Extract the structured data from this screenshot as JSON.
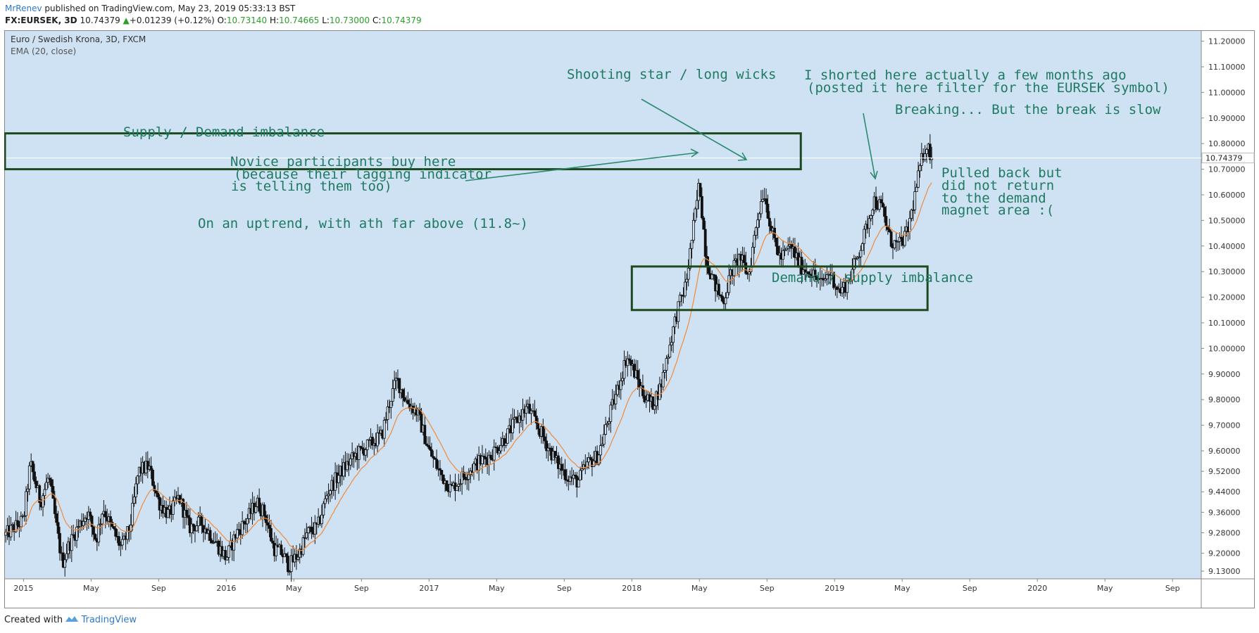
{
  "header": {
    "author": "MrRenev",
    "published_text": "published on TradingView.com, May 23, 2019 05:33:13 BST",
    "symbol": "FX:EURSEK, 3D",
    "last": "10.74379",
    "change": "+0.01239 (+0.12%)",
    "o_label": "O:",
    "o_value": "10.73140",
    "h_label": "H:",
    "h_value": "10.74665",
    "l_label": "L:",
    "l_value": "10.73000",
    "c_label": "C:",
    "c_value": "10.74379"
  },
  "legend": {
    "title": "Euro / Swedish Krona, 3D, FXCM",
    "indicator": "EMA (20, close)"
  },
  "price_tag": "10.74379",
  "annotations": {
    "shooting_star": "Shooting star / long wicks",
    "shorted_1": "I shorted here actually a few months ago",
    "shorted_2": "(posted it here filter for the EURSEK symbol)",
    "breaking": "Breaking... But the break is slow",
    "supply": "Supply / Demand imbalance",
    "novice_1": "Novice participants buy here",
    "novice_2": "(because their lagging indicator",
    "novice_3": "is telling them too)",
    "uptrend": "On an uptrend, with ath far above (11.8~)",
    "pulled_1": "Pulled back but",
    "pulled_2": "did not return",
    "pulled_3": "to the demand",
    "pulled_4": "magnet area :(",
    "demand": "Demand / supply imbalance"
  },
  "colors": {
    "background": "#cfe2f3",
    "candle": "#111111",
    "ema": "#f08a3c",
    "annotation": "#1f7a62",
    "zone_border": "#1d4a1d",
    "accent": "#2e7ac7",
    "up": "#2ca02c"
  },
  "footer": {
    "created_with": "Created with",
    "brand": "TradingView"
  },
  "chart_data": {
    "type": "candlestick",
    "title": "Euro / Swedish Krona, 3D, FXCM",
    "indicator": "EMA (20, close)",
    "ylim": [
      9.1,
      11.24
    ],
    "y_ticks": [
      "11.20000",
      "11.10000",
      "11.00000",
      "10.90000",
      "10.80000",
      "10.70000",
      "10.60000",
      "10.50000",
      "10.40000",
      "10.30000",
      "10.20000",
      "10.10000",
      "10.00000",
      "9.90000",
      "9.80000",
      "9.70000",
      "9.60000",
      "9.52000",
      "9.44000",
      "9.36000",
      "9.28000",
      "9.20000",
      "9.13000"
    ],
    "x_ticks": [
      "2015",
      "May",
      "Sep",
      "2016",
      "May",
      "Sep",
      "2017",
      "May",
      "Sep",
      "2018",
      "May",
      "Sep",
      "2019",
      "May",
      "Sep",
      "2020",
      "May",
      "Sep"
    ],
    "x_tick_months": [
      0,
      4,
      8,
      12,
      16,
      20,
      24,
      28,
      32,
      36,
      40,
      44,
      48,
      52,
      56,
      60,
      64,
      68
    ],
    "start_month": -1.1,
    "end_month": 69.7,
    "last_close": 10.74379,
    "close_path": [
      [
        -1.1,
        9.27
      ],
      [
        0.0,
        9.33
      ],
      [
        0.4,
        9.55
      ],
      [
        1.0,
        9.4
      ],
      [
        1.5,
        9.5
      ],
      [
        2.0,
        9.28
      ],
      [
        2.3,
        9.16
      ],
      [
        2.6,
        9.22
      ],
      [
        3.2,
        9.3
      ],
      [
        3.8,
        9.36
      ],
      [
        4.3,
        9.25
      ],
      [
        4.7,
        9.38
      ],
      [
        5.2,
        9.3
      ],
      [
        5.8,
        9.22
      ],
      [
        6.3,
        9.3
      ],
      [
        6.8,
        9.52
      ],
      [
        7.4,
        9.54
      ],
      [
        8.0,
        9.4
      ],
      [
        8.6,
        9.35
      ],
      [
        9.2,
        9.42
      ],
      [
        9.8,
        9.3
      ],
      [
        10.5,
        9.32
      ],
      [
        11.0,
        9.28
      ],
      [
        11.6,
        9.22
      ],
      [
        12.0,
        9.18
      ],
      [
        12.6,
        9.28
      ],
      [
        13.2,
        9.33
      ],
      [
        13.8,
        9.4
      ],
      [
        14.3,
        9.35
      ],
      [
        14.8,
        9.22
      ],
      [
        15.3,
        9.2
      ],
      [
        15.7,
        9.15
      ],
      [
        16.3,
        9.2
      ],
      [
        16.8,
        9.28
      ],
      [
        17.4,
        9.3
      ],
      [
        18.0,
        9.44
      ],
      [
        18.8,
        9.52
      ],
      [
        19.6,
        9.58
      ],
      [
        20.4,
        9.62
      ],
      [
        21.2,
        9.66
      ],
      [
        21.7,
        9.8
      ],
      [
        22.1,
        9.88
      ],
      [
        22.6,
        9.8
      ],
      [
        23.3,
        9.75
      ],
      [
        24.0,
        9.6
      ],
      [
        24.6,
        9.52
      ],
      [
        25.3,
        9.45
      ],
      [
        26.0,
        9.5
      ],
      [
        26.8,
        9.55
      ],
      [
        27.6,
        9.58
      ],
      [
        28.5,
        9.65
      ],
      [
        29.2,
        9.72
      ],
      [
        29.8,
        9.77
      ],
      [
        30.4,
        9.7
      ],
      [
        31.0,
        9.62
      ],
      [
        31.6,
        9.55
      ],
      [
        32.2,
        9.5
      ],
      [
        32.8,
        9.48
      ],
      [
        33.4,
        9.55
      ],
      [
        34.0,
        9.58
      ],
      [
        34.6,
        9.72
      ],
      [
        35.2,
        9.85
      ],
      [
        35.7,
        9.97
      ],
      [
        36.2,
        9.9
      ],
      [
        36.7,
        9.82
      ],
      [
        37.2,
        9.78
      ],
      [
        37.7,
        9.85
      ],
      [
        38.2,
        10.0
      ],
      [
        38.7,
        10.15
      ],
      [
        39.2,
        10.25
      ],
      [
        39.6,
        10.45
      ],
      [
        40.0,
        10.65
      ],
      [
        40.4,
        10.35
      ],
      [
        40.9,
        10.25
      ],
      [
        41.4,
        10.18
      ],
      [
        41.9,
        10.3
      ],
      [
        42.4,
        10.36
      ],
      [
        42.9,
        10.28
      ],
      [
        43.4,
        10.5
      ],
      [
        43.8,
        10.62
      ],
      [
        44.3,
        10.45
      ],
      [
        44.8,
        10.35
      ],
      [
        45.4,
        10.4
      ],
      [
        46.0,
        10.32
      ],
      [
        46.6,
        10.3
      ],
      [
        47.2,
        10.25
      ],
      [
        47.7,
        10.3
      ],
      [
        48.3,
        10.22
      ],
      [
        48.8,
        10.26
      ],
      [
        49.3,
        10.35
      ],
      [
        49.8,
        10.45
      ],
      [
        50.3,
        10.58
      ],
      [
        50.8,
        10.55
      ],
      [
        51.3,
        10.42
      ],
      [
        51.8,
        10.4
      ],
      [
        52.3,
        10.45
      ],
      [
        52.7,
        10.58
      ],
      [
        53.1,
        10.72
      ],
      [
        53.4,
        10.8
      ],
      [
        53.8,
        10.74379
      ]
    ],
    "zones": [
      {
        "name": "Supply / Demand imbalance",
        "x_start": -1.1,
        "x_end": 46.0,
        "y_low": 10.7,
        "y_high": 10.84
      },
      {
        "name": "Demand / supply imbalance",
        "x_start": 36.0,
        "x_end": 53.5,
        "y_low": 10.15,
        "y_high": 10.32
      }
    ]
  }
}
